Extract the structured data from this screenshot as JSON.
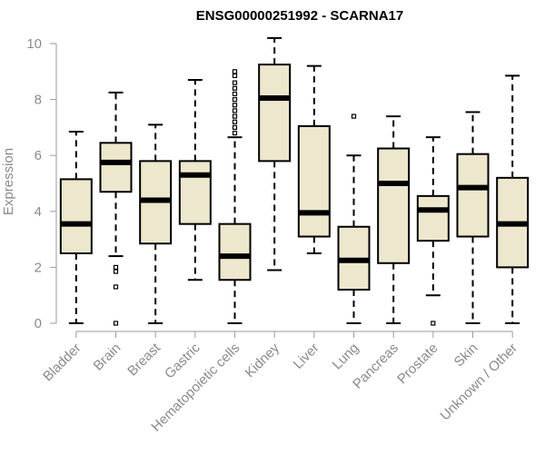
{
  "chart_data": {
    "type": "boxplot",
    "title": "ENSG00000251992 - SCARNA17",
    "ylabel": "Expression",
    "xlabel": "",
    "ylim": [
      0,
      10
    ],
    "yticks": [
      0,
      2,
      4,
      6,
      8,
      10
    ],
    "grid": false,
    "colors": {
      "box_fill": "#ede7cd",
      "stroke": "#000000",
      "axis": "#9a9a9a",
      "text": "#8a8a8a"
    },
    "categories": [
      "Bladder",
      "Brain",
      "Breast",
      "Gastric",
      "Hematopoietic cells",
      "Kidney",
      "Liver",
      "Lung",
      "Pancreas",
      "Prostate",
      "Skin",
      "Unknown / Other"
    ],
    "boxes": [
      {
        "name": "Bladder",
        "min": 0,
        "q1": 2.5,
        "median": 3.55,
        "q3": 5.15,
        "max": 6.85,
        "outliers": []
      },
      {
        "name": "Brain",
        "min": 2.4,
        "q1": 4.7,
        "median": 5.75,
        "q3": 6.45,
        "max": 8.25,
        "outliers": [
          2.0,
          1.85,
          1.3,
          0
        ]
      },
      {
        "name": "Breast",
        "min": 0,
        "q1": 2.85,
        "median": 4.4,
        "q3": 5.8,
        "max": 7.1,
        "outliers": []
      },
      {
        "name": "Gastric",
        "min": 1.55,
        "q1": 3.55,
        "median": 5.3,
        "q3": 5.8,
        "max": 8.7,
        "outliers": []
      },
      {
        "name": "Hematopoietic cells",
        "min": 0,
        "q1": 1.55,
        "median": 2.4,
        "q3": 3.55,
        "max": 6.65,
        "outliers": [
          6.8,
          7.0,
          7.2,
          7.4,
          7.6,
          7.8,
          8.0,
          8.2,
          8.4,
          8.6,
          8.85,
          9.0
        ]
      },
      {
        "name": "Kidney",
        "min": 1.9,
        "q1": 5.8,
        "median": 8.05,
        "q3": 9.25,
        "max": 10.2,
        "outliers": []
      },
      {
        "name": "Liver",
        "min": 2.5,
        "q1": 3.1,
        "median": 3.95,
        "q3": 7.05,
        "max": 9.2,
        "outliers": []
      },
      {
        "name": "Lung",
        "min": 0,
        "q1": 1.2,
        "median": 2.25,
        "q3": 3.45,
        "max": 6.0,
        "outliers": [
          7.4
        ]
      },
      {
        "name": "Pancreas",
        "min": 0,
        "q1": 2.15,
        "median": 5.0,
        "q3": 6.25,
        "max": 7.4,
        "outliers": []
      },
      {
        "name": "Prostate",
        "min": 1.0,
        "q1": 2.95,
        "median": 4.05,
        "q3": 4.55,
        "max": 6.65,
        "outliers": [
          0
        ]
      },
      {
        "name": "Skin",
        "min": 0,
        "q1": 3.1,
        "median": 4.85,
        "q3": 6.05,
        "max": 7.55,
        "outliers": []
      },
      {
        "name": "Unknown / Other",
        "min": 0,
        "q1": 2.0,
        "median": 3.55,
        "q3": 5.2,
        "max": 8.85,
        "outliers": []
      }
    ]
  }
}
